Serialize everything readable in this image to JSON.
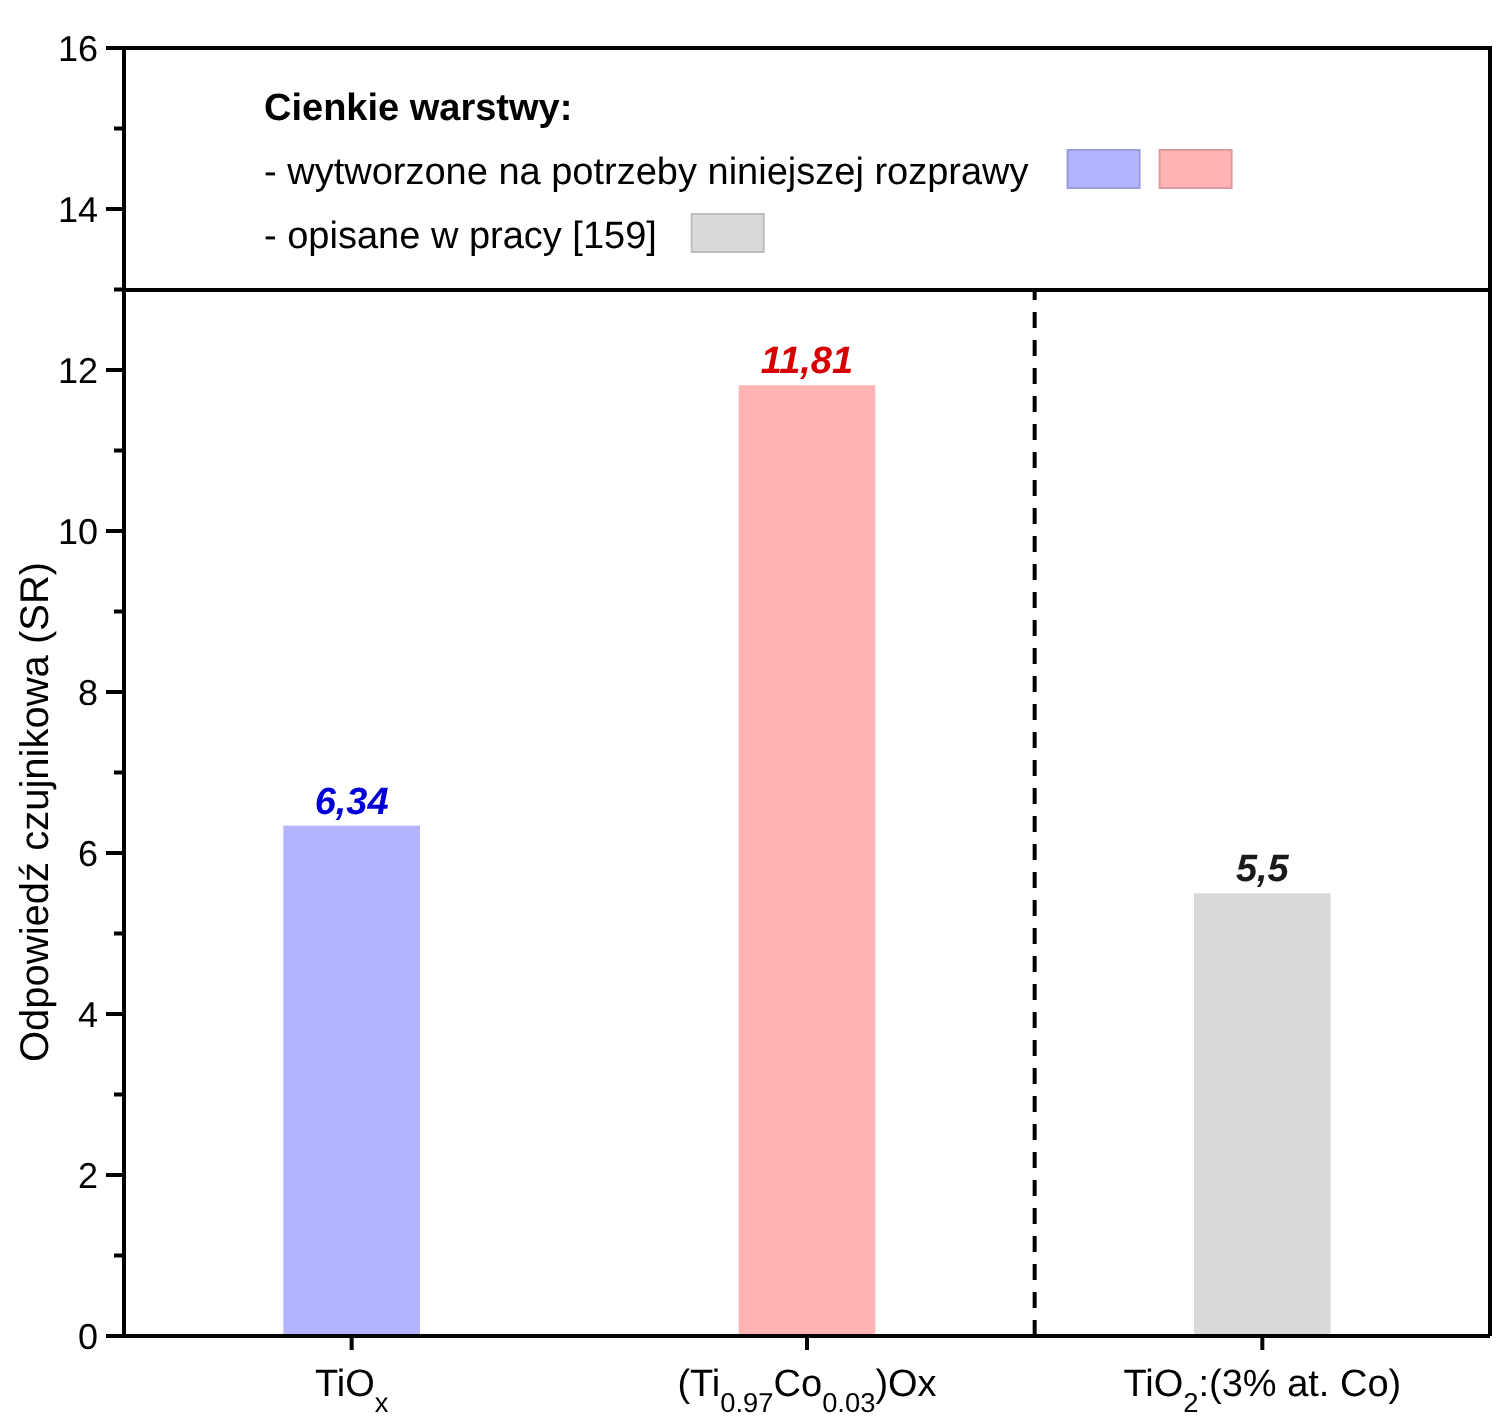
{
  "chart_data": {
    "type": "bar",
    "ylabel": "Odpowiedź czujnikowa (SR)",
    "legend_title": "Cienkie warstwy:",
    "categories": [
      "TiO$_{x}$",
      "(Ti$_{0.97}$Co$_{0.03}$)Ox",
      "TiO$_{2}$:(3% at. Co)"
    ],
    "series": [
      {
        "name": "- wytworzone na potrzeby niniejszej rozprawy",
        "colors": [
          "#b3b3ff",
          "#ffb3b3",
          null
        ],
        "values": [
          6.34,
          11.81,
          null
        ],
        "value_labels": [
          "6,34",
          "11,81",
          null
        ]
      },
      {
        "name": "- opisane w pracy [159]",
        "color": "#d9d9d9",
        "values": [
          null,
          null,
          5.5
        ],
        "value_labels": [
          null,
          null,
          "5,5"
        ]
      }
    ],
    "ylim": [
      0,
      16
    ],
    "yticks": [
      0,
      {
        "value": 1,
        "label": null
      },
      2,
      {
        "value": 3,
        "label": null
      },
      4,
      {
        "value": 5,
        "label": null
      },
      6,
      {
        "value": 7,
        "label": null
      },
      8,
      {
        "value": 9,
        "label": null
      },
      10,
      {
        "value": 11,
        "label": null
      },
      12,
      {
        "value": 13,
        "label": null
      },
      14,
      {
        "value": 15,
        "label": null
      },
      16
    ],
    "legend": "top",
    "grid": false
  }
}
